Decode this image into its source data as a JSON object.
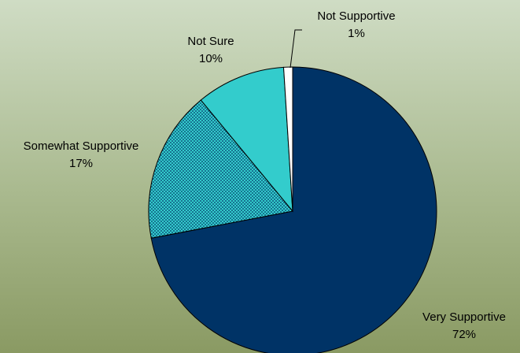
{
  "chart_data": {
    "type": "pie",
    "title": "",
    "categories": [
      "Very Supportive",
      "Somewhat Supportive",
      "Not Sure",
      "Not Supportive"
    ],
    "values": [
      72,
      17,
      10,
      1
    ],
    "value_labels": [
      "72%",
      "17%",
      "10%",
      "1%"
    ],
    "colors": {
      "Very Supportive": "#003366",
      "Somewhat Supportive": "#33cccc",
      "Not Sure": "#33cccc",
      "Not Supportive": "#ffffff"
    },
    "patterns": {
      "Somewhat Supportive": "dotted"
    },
    "legend": "none",
    "grid": false
  }
}
